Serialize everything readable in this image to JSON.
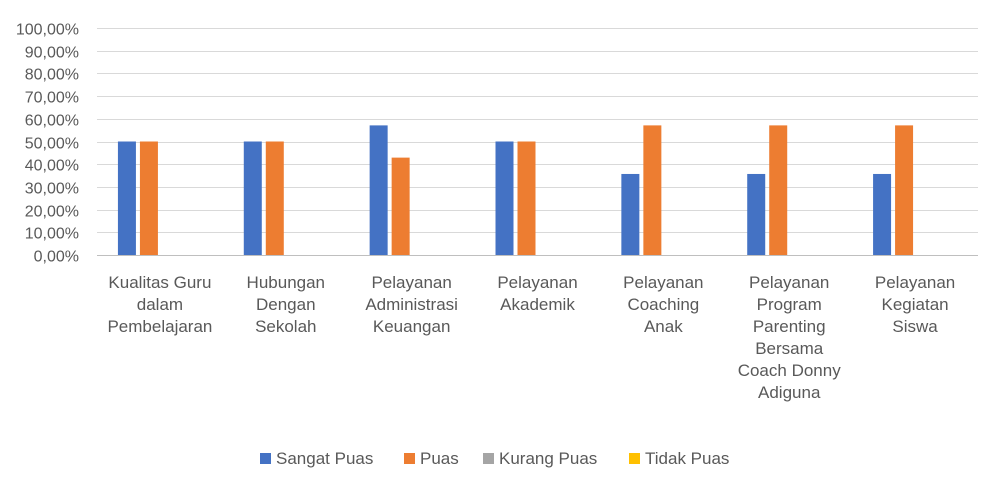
{
  "chart_data": {
    "type": "bar",
    "categories": [
      [
        "Kualitas Guru",
        "dalam",
        "Pembelajaran"
      ],
      [
        "Hubungan",
        "Dengan",
        "Sekolah"
      ],
      [
        "Pelayanan",
        "Administrasi",
        "Keuangan"
      ],
      [
        "Pelayanan",
        "Akademik"
      ],
      [
        "Pelayanan",
        "Coaching",
        "Anak"
      ],
      [
        "Pelayanan",
        "Program",
        "Parenting",
        "Bersama",
        "Coach Donny",
        "Adiguna"
      ],
      [
        "Pelayanan",
        "Kegiatan",
        "Siswa"
      ]
    ],
    "series": [
      {
        "name": "Sangat Puas",
        "color": "#4472C4",
        "values": [
          0.5,
          0.5,
          0.571,
          0.5,
          0.357,
          0.357,
          0.357
        ]
      },
      {
        "name": "Puas",
        "color": "#ED7D31",
        "values": [
          0.5,
          0.5,
          0.429,
          0.5,
          0.571,
          0.571,
          0.571
        ]
      },
      {
        "name": "Kurang Puas",
        "color": "#A5A5A5",
        "values": [
          0,
          0,
          0,
          0,
          0,
          0,
          0
        ]
      },
      {
        "name": "Tidak Puas",
        "color": "#FFC000",
        "values": [
          0,
          0,
          0,
          0,
          0,
          0,
          0
        ]
      }
    ],
    "y_ticks": [
      "0,00%",
      "10,00%",
      "20,00%",
      "30,00%",
      "40,00%",
      "50,00%",
      "60,00%",
      "70,00%",
      "80,00%",
      "90,00%",
      "100,00%"
    ],
    "ylim": [
      0,
      1
    ],
    "grid": true,
    "legend": "bottom",
    "title": "",
    "xlabel": "",
    "ylabel": ""
  }
}
